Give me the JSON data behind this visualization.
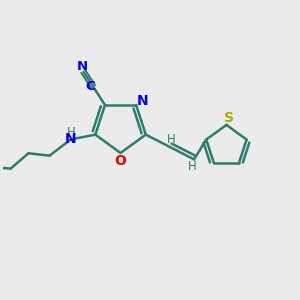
{
  "background_color": "#ebebeb",
  "bond_color": "#2d7d6d",
  "N_color": "#0000ee",
  "O_color": "#ee0000",
  "S_color": "#aaaa00",
  "H_color": "#2d7d6d",
  "figsize": [
    3.0,
    3.0
  ],
  "dpi": 100,
  "xlim": [
    0,
    10
  ],
  "ylim": [
    0,
    10
  ]
}
